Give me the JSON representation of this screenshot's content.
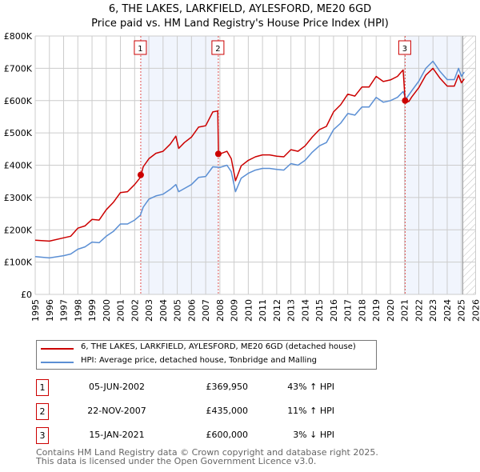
{
  "chart_data": {
    "type": "line",
    "title": "6, THE LAKES, LARKFIELD, AYLESFORD, ME20 6GD",
    "subtitle": "Price paid vs. HM Land Registry's House Price Index (HPI)",
    "xlim": [
      1995,
      2026
    ],
    "ylim": [
      0,
      800000
    ],
    "x_ticks": [
      "1995",
      "1996",
      "1997",
      "1998",
      "1999",
      "2000",
      "2001",
      "2002",
      "2003",
      "2004",
      "2005",
      "2006",
      "2007",
      "2008",
      "2009",
      "2010",
      "2011",
      "2012",
      "2013",
      "2014",
      "2015",
      "2016",
      "2017",
      "2018",
      "2019",
      "2020",
      "2021",
      "2022",
      "2023",
      "2024",
      "2025",
      "2026"
    ],
    "y_ticks": [
      {
        "v": 0,
        "label": "£0"
      },
      {
        "v": 100000,
        "label": "£100K"
      },
      {
        "v": 200000,
        "label": "£200K"
      },
      {
        "v": 300000,
        "label": "£300K"
      },
      {
        "v": 400000,
        "label": "£400K"
      },
      {
        "v": 500000,
        "label": "£500K"
      },
      {
        "v": 600000,
        "label": "£600K"
      },
      {
        "v": 700000,
        "label": "£700K"
      },
      {
        "v": 800000,
        "label": "£800K"
      }
    ],
    "grid": true,
    "shaded_ranges": [
      [
        2002.43,
        2007.89
      ],
      [
        2021.04,
        2025.1
      ]
    ],
    "forecast_hatch_from": 2025.1,
    "series": [
      {
        "name": "6, THE LAKES, LARKFIELD, AYLESFORD, ME20 6GD (detached house)",
        "color": "#cc0000",
        "x": [
          1995,
          1996,
          1997,
          1997.5,
          1998,
          1998.5,
          1999,
          1999.5,
          2000,
          2000.5,
          2001,
          2001.5,
          2002,
          2002.4,
          2002.45,
          2002.6,
          2003,
          2003.5,
          2004,
          2004.5,
          2004.9,
          2005.1,
          2005.5,
          2006,
          2006.5,
          2007,
          2007.5,
          2007.85,
          2007.9,
          2008,
          2008.5,
          2008.8,
          2009.1,
          2009.5,
          2010,
          2010.5,
          2011,
          2011.5,
          2012,
          2012.5,
          2013,
          2013.5,
          2014,
          2014.5,
          2015,
          2015.5,
          2016,
          2016.5,
          2017,
          2017.5,
          2018,
          2018.5,
          2019,
          2019.5,
          2020,
          2020.5,
          2020.9,
          2021.04,
          2021.3,
          2021.5,
          2022,
          2022.5,
          2023,
          2023.5,
          2024,
          2024.5,
          2024.8,
          2025,
          2025.2
        ],
        "y": [
          168000,
          165000,
          175000,
          180000,
          205000,
          212000,
          232000,
          230000,
          262000,
          285000,
          315000,
          318000,
          340000,
          362000,
          370000,
          395000,
          420000,
          437000,
          443000,
          465000,
          490000,
          452000,
          470000,
          487000,
          518000,
          522000,
          565000,
          568000,
          435000,
          435000,
          443000,
          420000,
          352000,
          398000,
          415000,
          426000,
          432000,
          432000,
          428000,
          426000,
          448000,
          443000,
          460000,
          487000,
          510000,
          520000,
          565000,
          587000,
          620000,
          614000,
          642000,
          642000,
          675000,
          659000,
          664000,
          675000,
          695000,
          600000,
          597000,
          611000,
          640000,
          679000,
          700000,
          669000,
          645000,
          645000,
          679000,
          655000,
          667000
        ]
      },
      {
        "name": "HPI: Average price, detached house, Tonbridge and Malling",
        "color": "#5b8fd4",
        "x": [
          1995,
          1996,
          1997,
          1997.5,
          1998,
          1998.5,
          1999,
          1999.5,
          2000,
          2000.5,
          2001,
          2001.5,
          2002,
          2002.4,
          2002.6,
          2003,
          2003.5,
          2004,
          2004.5,
          2004.9,
          2005.1,
          2005.5,
          2006,
          2006.5,
          2007,
          2007.5,
          2008,
          2008.5,
          2008.8,
          2009.1,
          2009.5,
          2010,
          2010.5,
          2011,
          2011.5,
          2012,
          2012.5,
          2013,
          2013.5,
          2014,
          2014.5,
          2015,
          2015.5,
          2016,
          2016.5,
          2017,
          2017.5,
          2018,
          2018.5,
          2019,
          2019.5,
          2020,
          2020.5,
          2020.9,
          2021.1,
          2021.5,
          2022,
          2022.5,
          2023,
          2023.5,
          2024,
          2024.5,
          2024.8,
          2025,
          2025.2
        ],
        "y": [
          117000,
          113000,
          120000,
          125000,
          140000,
          147000,
          162000,
          160000,
          180000,
          195000,
          218000,
          218000,
          230000,
          245000,
          270000,
          295000,
          305000,
          310000,
          325000,
          340000,
          318000,
          328000,
          340000,
          362000,
          365000,
          395000,
          393000,
          400000,
          380000,
          318000,
          360000,
          375000,
          385000,
          390000,
          390000,
          387000,
          385000,
          405000,
          400000,
          415000,
          440000,
          460000,
          470000,
          510000,
          530000,
          560000,
          555000,
          580000,
          580000,
          610000,
          595000,
          600000,
          610000,
          628000,
          605000,
          630000,
          660000,
          700000,
          722000,
          690000,
          665000,
          665000,
          700000,
          675000,
          688000
        ]
      }
    ],
    "sales": [
      {
        "n": "1",
        "x": 2002.43,
        "y": 369950,
        "date": "05-JUN-2002",
        "price": "£369,950",
        "hpi": "43% ↑ HPI"
      },
      {
        "n": "2",
        "x": 2007.89,
        "y": 435000,
        "date": "22-NOV-2007",
        "price": "£435,000",
        "hpi": "11% ↑ HPI"
      },
      {
        "n": "3",
        "x": 2021.04,
        "y": 600000,
        "date": "15-JAN-2021",
        "price": "£600,000",
        "hpi": "3% ↓ HPI"
      }
    ]
  },
  "footer": {
    "line1": "Contains HM Land Registry data © Crown copyright and database right 2025.",
    "line2": "This data is licensed under the Open Government Licence v3.0."
  }
}
